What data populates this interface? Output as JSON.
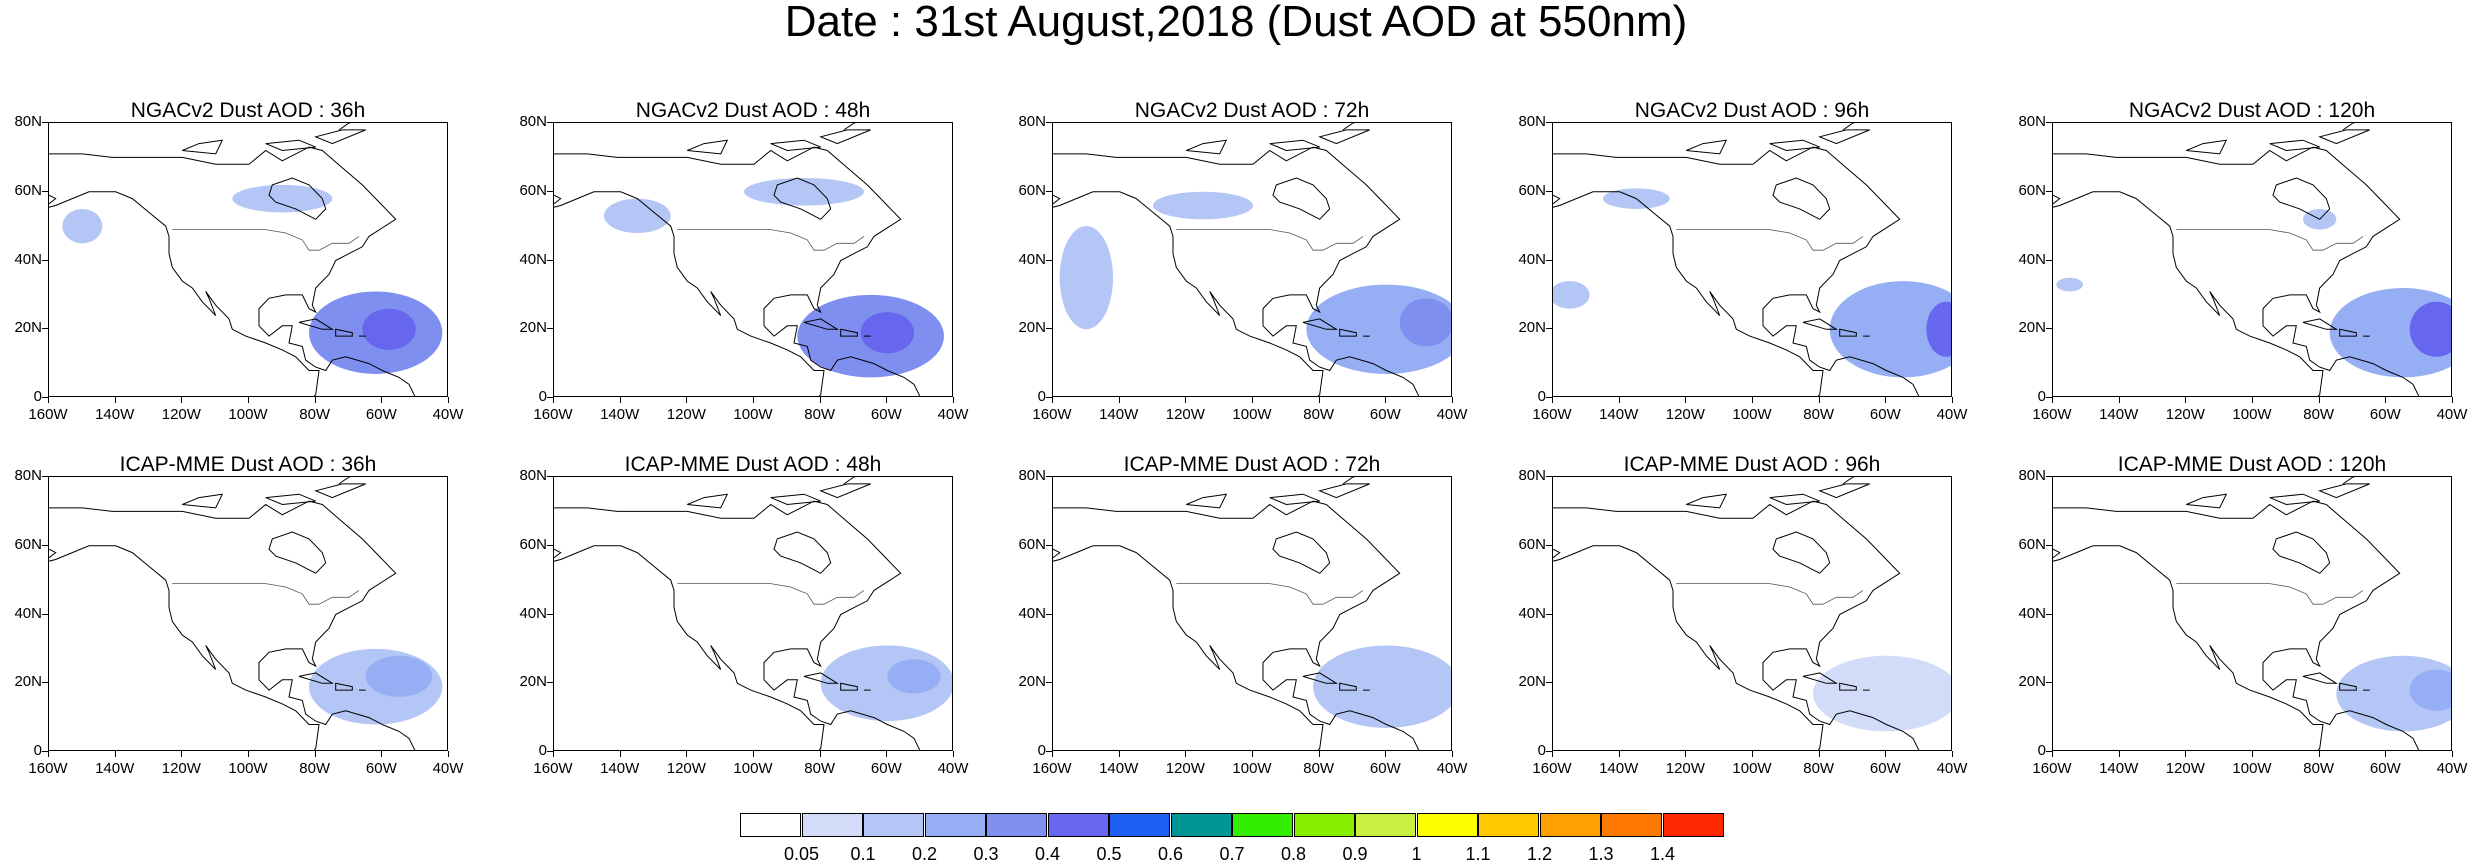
{
  "title": "Date : 31st August,2018 (Dust AOD at 550nm)",
  "lat_labels": [
    "80N",
    "60N",
    "40N",
    "20N",
    "0"
  ],
  "lon_labels": [
    "160W",
    "140W",
    "120W",
    "100W",
    "80W",
    "60W",
    "40W"
  ],
  "map_extent": {
    "lon_min": -160,
    "lon_max": -40,
    "lat_min": 0,
    "lat_max": 80
  },
  "panels": [
    {
      "title": "NGACv2 Dust AOD : 36h",
      "model": "NGACv2",
      "lead": "36h",
      "dust": [
        {
          "lon": -62,
          "lat": 19,
          "rlon": 20,
          "rlat": 12,
          "aod": 0.3
        },
        {
          "lon": -58,
          "lat": 20,
          "rlon": 8,
          "rlat": 6,
          "aod": 0.4
        },
        {
          "lon": -90,
          "lat": 58,
          "rlon": 15,
          "rlat": 4,
          "aod": 0.1
        },
        {
          "lon": -150,
          "lat": 50,
          "rlon": 6,
          "rlat": 5,
          "aod": 0.1
        }
      ]
    },
    {
      "title": "NGACv2 Dust AOD : 48h",
      "model": "NGACv2",
      "lead": "48h",
      "dust": [
        {
          "lon": -65,
          "lat": 18,
          "rlon": 22,
          "rlat": 12,
          "aod": 0.3
        },
        {
          "lon": -60,
          "lat": 19,
          "rlon": 8,
          "rlat": 6,
          "aod": 0.4
        },
        {
          "lon": -135,
          "lat": 53,
          "rlon": 10,
          "rlat": 5,
          "aod": 0.1
        },
        {
          "lon": -85,
          "lat": 60,
          "rlon": 18,
          "rlat": 4,
          "aod": 0.1
        }
      ]
    },
    {
      "title": "NGACv2 Dust AOD : 72h",
      "model": "NGACv2",
      "lead": "72h",
      "dust": [
        {
          "lon": -60,
          "lat": 20,
          "rlon": 24,
          "rlat": 13,
          "aod": 0.2
        },
        {
          "lon": -48,
          "lat": 22,
          "rlon": 8,
          "rlat": 7,
          "aod": 0.3
        },
        {
          "lon": -150,
          "lat": 35,
          "rlon": 8,
          "rlat": 15,
          "aod": 0.1
        },
        {
          "lon": -115,
          "lat": 56,
          "rlon": 15,
          "rlat": 4,
          "aod": 0.1
        }
      ]
    },
    {
      "title": "NGACv2 Dust AOD : 96h",
      "model": "NGACv2",
      "lead": "96h",
      "dust": [
        {
          "lon": -55,
          "lat": 20,
          "rlon": 22,
          "rlat": 14,
          "aod": 0.2
        },
        {
          "lon": -42,
          "lat": 20,
          "rlon": 6,
          "rlat": 8,
          "aod": 0.4
        },
        {
          "lon": -155,
          "lat": 30,
          "rlon": 6,
          "rlat": 4,
          "aod": 0.1
        },
        {
          "lon": -135,
          "lat": 58,
          "rlon": 10,
          "rlat": 3,
          "aod": 0.1
        }
      ]
    },
    {
      "title": "NGACv2 Dust AOD : 120h",
      "model": "NGACv2",
      "lead": "120h",
      "dust": [
        {
          "lon": -55,
          "lat": 19,
          "rlon": 22,
          "rlat": 13,
          "aod": 0.2
        },
        {
          "lon": -45,
          "lat": 20,
          "rlon": 8,
          "rlat": 8,
          "aod": 0.4
        },
        {
          "lon": -155,
          "lat": 33,
          "rlon": 4,
          "rlat": 2,
          "aod": 0.1
        },
        {
          "lon": -80,
          "lat": 52,
          "rlon": 5,
          "rlat": 3,
          "aod": 0.1
        }
      ]
    },
    {
      "title": "ICAP-MME Dust AOD : 36h",
      "model": "ICAP-MME",
      "lead": "36h",
      "dust": [
        {
          "lon": -62,
          "lat": 19,
          "rlon": 20,
          "rlat": 11,
          "aod": 0.1
        },
        {
          "lon": -55,
          "lat": 22,
          "rlon": 10,
          "rlat": 6,
          "aod": 0.2
        }
      ]
    },
    {
      "title": "ICAP-MME Dust AOD : 48h",
      "model": "ICAP-MME",
      "lead": "48h",
      "dust": [
        {
          "lon": -60,
          "lat": 20,
          "rlon": 20,
          "rlat": 11,
          "aod": 0.1
        },
        {
          "lon": -52,
          "lat": 22,
          "rlon": 8,
          "rlat": 5,
          "aod": 0.2
        }
      ]
    },
    {
      "title": "ICAP-MME Dust AOD : 72h",
      "model": "ICAP-MME",
      "lead": "72h",
      "dust": [
        {
          "lon": -60,
          "lat": 19,
          "rlon": 22,
          "rlat": 12,
          "aod": 0.1
        }
      ]
    },
    {
      "title": "ICAP-MME Dust AOD : 96h",
      "model": "ICAP-MME",
      "lead": "96h",
      "dust": [
        {
          "lon": -60,
          "lat": 17,
          "rlon": 22,
          "rlat": 11,
          "aod": 0.05
        }
      ]
    },
    {
      "title": "ICAP-MME Dust AOD : 120h",
      "model": "ICAP-MME",
      "lead": "120h",
      "dust": [
        {
          "lon": -55,
          "lat": 17,
          "rlon": 20,
          "rlat": 11,
          "aod": 0.1
        },
        {
          "lon": -45,
          "lat": 18,
          "rlon": 8,
          "rlat": 6,
          "aod": 0.2
        }
      ]
    }
  ],
  "colorbar": {
    "labels": [
      "0.05",
      "0.1",
      "0.2",
      "0.3",
      "0.4",
      "0.5",
      "0.6",
      "0.7",
      "0.8",
      "0.9",
      "1",
      "1.1",
      "1.2",
      "1.3",
      "1.4"
    ],
    "colors": [
      "#ffffff",
      "#d2dcf8",
      "#b4c6f6",
      "#96aff4",
      "#7f8ff0",
      "#6666ee",
      "#1f5ff2",
      "#009696",
      "#33ee00",
      "#88ee00",
      "#c8f040",
      "#ffff00",
      "#ffc800",
      "#ffa000",
      "#ff7800",
      "#ff2800"
    ]
  }
}
